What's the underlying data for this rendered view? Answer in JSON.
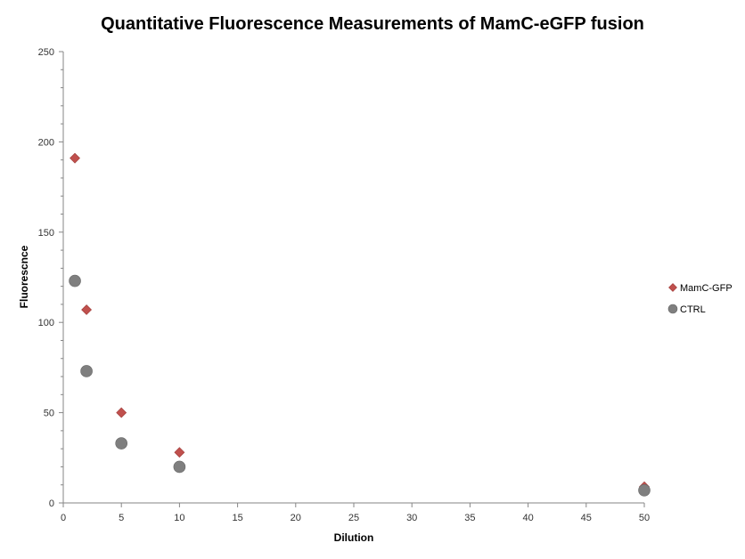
{
  "chart_data": {
    "type": "scatter",
    "title": "Quantitative Fluorescence Measurements of MamC-eGFP fusion",
    "xlabel": "Dilution",
    "ylabel": "Fluorescnce",
    "xlim": [
      0,
      50
    ],
    "ylim": [
      0,
      250
    ],
    "x_ticks": [
      "0",
      "5",
      "10",
      "15",
      "20",
      "25",
      "30",
      "35",
      "40",
      "45",
      "50"
    ],
    "y_ticks": [
      "0",
      "50",
      "100",
      "150",
      "200",
      "250"
    ],
    "grid": false,
    "legend_position": "right",
    "series": [
      {
        "name": "MamC-GFP",
        "marker": "diamond",
        "color": "#C0504D",
        "points": [
          {
            "x": 1,
            "y": 191
          },
          {
            "x": 2,
            "y": 107
          },
          {
            "x": 5,
            "y": 50
          },
          {
            "x": 10,
            "y": 28
          },
          {
            "x": 50,
            "y": 9
          }
        ]
      },
      {
        "name": "CTRL",
        "marker": "circle",
        "color": "#7F7F7F",
        "points": [
          {
            "x": 1,
            "y": 123
          },
          {
            "x": 2,
            "y": 73
          },
          {
            "x": 5,
            "y": 33
          },
          {
            "x": 10,
            "y": 20
          },
          {
            "x": 50,
            "y": 7
          }
        ]
      }
    ]
  }
}
